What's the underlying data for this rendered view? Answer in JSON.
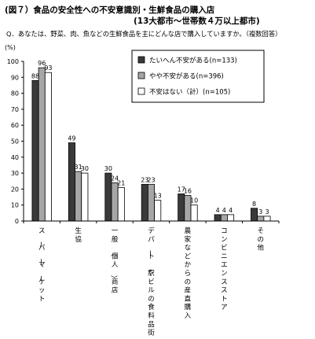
{
  "header": {
    "title": "(図７）食品の安全性への不安意識別・生鮮食品の購入店",
    "subtitle": "(13大都市～世帯数４万以上都市)",
    "question": "Q．あなたは、野菜、肉、魚などの生鮮食品を主にどんな店で購入していますか。（複数回答）"
  },
  "colors": {
    "series": [
      "#3a3a3a",
      "#a6a6a6",
      "#ffffff"
    ],
    "stroke": "#000000"
  },
  "chart_data": {
    "type": "bar",
    "ylabel": "(%)",
    "ylim": [
      0,
      100
    ],
    "yticks": [
      0,
      10,
      20,
      30,
      40,
      50,
      60,
      70,
      80,
      90,
      100
    ],
    "categories": [
      "スーパーマーケット",
      "生協",
      "一般（個人）商店",
      "デパート・駅ビルの食料品街",
      "農家などからの産直購入",
      "コンビニエンスストア",
      "その他"
    ],
    "series": [
      {
        "name": "たいへん不安がある(n=133)",
        "values": [
          88,
          49,
          30,
          23,
          17,
          4,
          8
        ]
      },
      {
        "name": "やや不安がある(n=396)",
        "values": [
          96,
          31,
          24,
          23,
          16,
          4,
          3
        ]
      },
      {
        "name": "不安はない（計）(n=105)",
        "values": [
          93,
          30,
          21,
          13,
          10,
          4,
          3
        ]
      }
    ],
    "legend_position": "top-right",
    "grid": false
  }
}
